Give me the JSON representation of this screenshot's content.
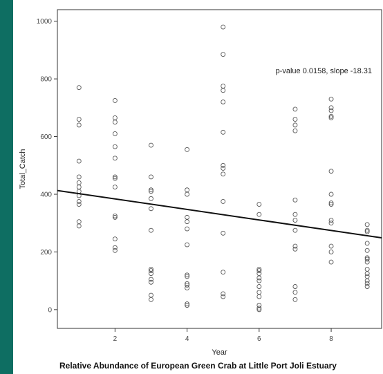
{
  "colors": {
    "background": "#0e6e62",
    "panel": "#ffffff",
    "point": "#555555",
    "line": "#111111"
  },
  "chart_data": {
    "type": "scatter",
    "title": "Relative Abundance of European Green Crab at Little Port Joli Estuary",
    "xlabel": "Year",
    "ylabel": "Total_Catch",
    "xlim": [
      0.4,
      9.4
    ],
    "ylim": [
      -65,
      1040
    ],
    "xticks": [
      2,
      4,
      6,
      8
    ],
    "yticks": [
      0,
      200,
      400,
      600,
      800,
      1000
    ],
    "grid": false,
    "annotation": "p-value 0.0158, slope -18.31",
    "regression": {
      "x": [
        0.4,
        9.4
      ],
      "y": [
        413,
        249
      ]
    },
    "points": [
      [
        1,
        770
      ],
      [
        1,
        660
      ],
      [
        1,
        640
      ],
      [
        1,
        515
      ],
      [
        1,
        460
      ],
      [
        1,
        440
      ],
      [
        1,
        425
      ],
      [
        1,
        410
      ],
      [
        1,
        395
      ],
      [
        1,
        375
      ],
      [
        1,
        365
      ],
      [
        1,
        305
      ],
      [
        1,
        290
      ],
      [
        2,
        725
      ],
      [
        2,
        665
      ],
      [
        2,
        650
      ],
      [
        2,
        610
      ],
      [
        2,
        565
      ],
      [
        2,
        525
      ],
      [
        2,
        460
      ],
      [
        2,
        455
      ],
      [
        2,
        425
      ],
      [
        2,
        325
      ],
      [
        2,
        320
      ],
      [
        2,
        245
      ],
      [
        2,
        215
      ],
      [
        2,
        205
      ],
      [
        3,
        570
      ],
      [
        3,
        460
      ],
      [
        3,
        415
      ],
      [
        3,
        410
      ],
      [
        3,
        385
      ],
      [
        3,
        350
      ],
      [
        3,
        275
      ],
      [
        3,
        140
      ],
      [
        3,
        135
      ],
      [
        3,
        125
      ],
      [
        3,
        105
      ],
      [
        3,
        95
      ],
      [
        3,
        50
      ],
      [
        3,
        35
      ],
      [
        4,
        555
      ],
      [
        4,
        415
      ],
      [
        4,
        400
      ],
      [
        4,
        320
      ],
      [
        4,
        305
      ],
      [
        4,
        280
      ],
      [
        4,
        225
      ],
      [
        4,
        120
      ],
      [
        4,
        115
      ],
      [
        4,
        90
      ],
      [
        4,
        85
      ],
      [
        4,
        75
      ],
      [
        4,
        20
      ],
      [
        4,
        15
      ],
      [
        5,
        980
      ],
      [
        5,
        885
      ],
      [
        5,
        775
      ],
      [
        5,
        760
      ],
      [
        5,
        720
      ],
      [
        5,
        615
      ],
      [
        5,
        500
      ],
      [
        5,
        490
      ],
      [
        5,
        470
      ],
      [
        5,
        375
      ],
      [
        5,
        265
      ],
      [
        5,
        130
      ],
      [
        5,
        55
      ],
      [
        5,
        45
      ],
      [
        6,
        365
      ],
      [
        6,
        330
      ],
      [
        6,
        140
      ],
      [
        6,
        135
      ],
      [
        6,
        125
      ],
      [
        6,
        110
      ],
      [
        6,
        100
      ],
      [
        6,
        80
      ],
      [
        6,
        60
      ],
      [
        6,
        45
      ],
      [
        6,
        15
      ],
      [
        6,
        5
      ],
      [
        6,
        0
      ],
      [
        7,
        695
      ],
      [
        7,
        660
      ],
      [
        7,
        640
      ],
      [
        7,
        620
      ],
      [
        7,
        380
      ],
      [
        7,
        330
      ],
      [
        7,
        310
      ],
      [
        7,
        275
      ],
      [
        7,
        220
      ],
      [
        7,
        210
      ],
      [
        7,
        80
      ],
      [
        7,
        60
      ],
      [
        7,
        35
      ],
      [
        8,
        730
      ],
      [
        8,
        700
      ],
      [
        8,
        690
      ],
      [
        8,
        670
      ],
      [
        8,
        665
      ],
      [
        8,
        480
      ],
      [
        8,
        400
      ],
      [
        8,
        370
      ],
      [
        8,
        365
      ],
      [
        8,
        310
      ],
      [
        8,
        300
      ],
      [
        8,
        220
      ],
      [
        8,
        200
      ],
      [
        8,
        165
      ],
      [
        9,
        295
      ],
      [
        9,
        275
      ],
      [
        9,
        270
      ],
      [
        9,
        230
      ],
      [
        9,
        205
      ],
      [
        9,
        180
      ],
      [
        9,
        175
      ],
      [
        9,
        165
      ],
      [
        9,
        140
      ],
      [
        9,
        125
      ],
      [
        9,
        115
      ],
      [
        9,
        100
      ],
      [
        9,
        90
      ],
      [
        9,
        80
      ]
    ]
  }
}
